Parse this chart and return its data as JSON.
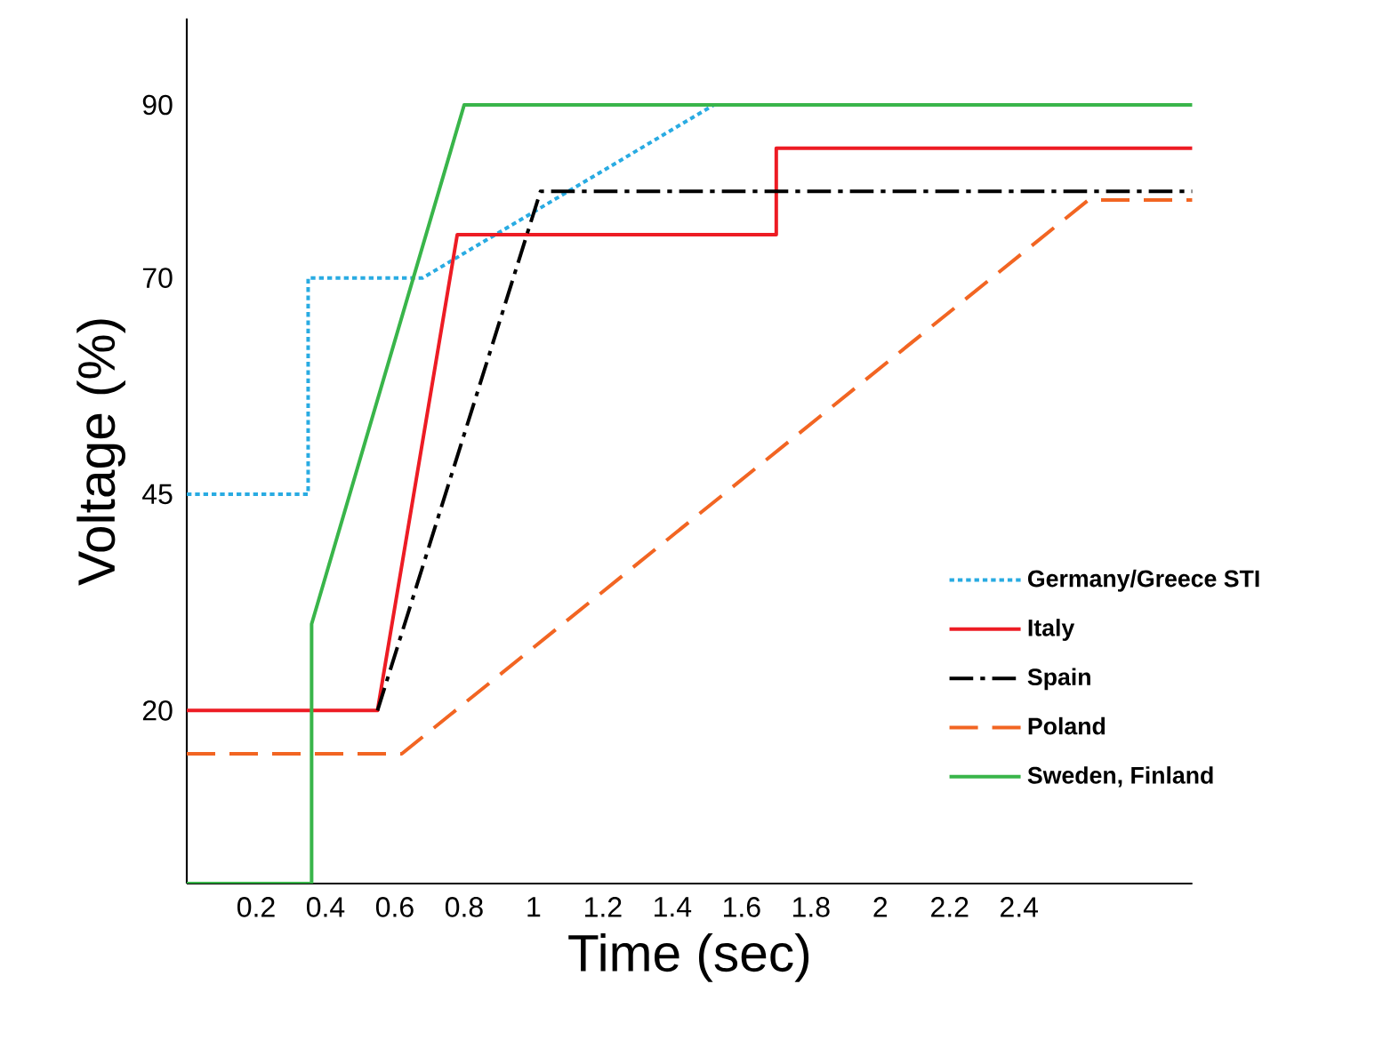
{
  "chart_data": {
    "type": "line",
    "xlabel": "Time (sec)",
    "ylabel": "Voltage (%)",
    "xlim": [
      0,
      2.9
    ],
    "ylim": [
      0,
      100
    ],
    "xticks": [
      0.2,
      0.4,
      0.6,
      0.8,
      1,
      1.2,
      1.4,
      1.6,
      1.8,
      2,
      2.2,
      2.4
    ],
    "yticks": [
      20,
      45,
      70,
      90
    ],
    "legend": "bottom right",
    "marker": "none",
    "grid": false,
    "series": [
      {
        "name": "Germany/Greece STI",
        "color": "#29abe2",
        "line_style": "dotted",
        "x": [
          0,
          0.35,
          0.35,
          0.68,
          1.52
        ],
        "values": [
          45,
          45,
          70,
          70,
          90
        ]
      },
      {
        "name": "Italy",
        "color": "#ed1c24",
        "line_style": "solid",
        "x": [
          0,
          0.55,
          0.78,
          1.7,
          1.7,
          2.9
        ],
        "values": [
          20,
          20,
          75,
          75,
          85,
          85
        ]
      },
      {
        "name": "Spain",
        "color": "#000000",
        "line_style": "dashdot",
        "x": [
          0.55,
          1.02,
          2.9
        ],
        "values": [
          20,
          80,
          80
        ]
      },
      {
        "name": "Poland",
        "color": "#f26522",
        "line_style": "dashed",
        "x": [
          0,
          0.62,
          2.6,
          2.9
        ],
        "values": [
          15,
          15,
          79,
          79
        ]
      },
      {
        "name": "Sweden, Finland",
        "color": "#39b54a",
        "line_style": "solid",
        "x": [
          0,
          0.36,
          0.36,
          0.8,
          2.9
        ],
        "values": [
          0,
          0,
          30,
          90,
          90
        ]
      }
    ]
  }
}
